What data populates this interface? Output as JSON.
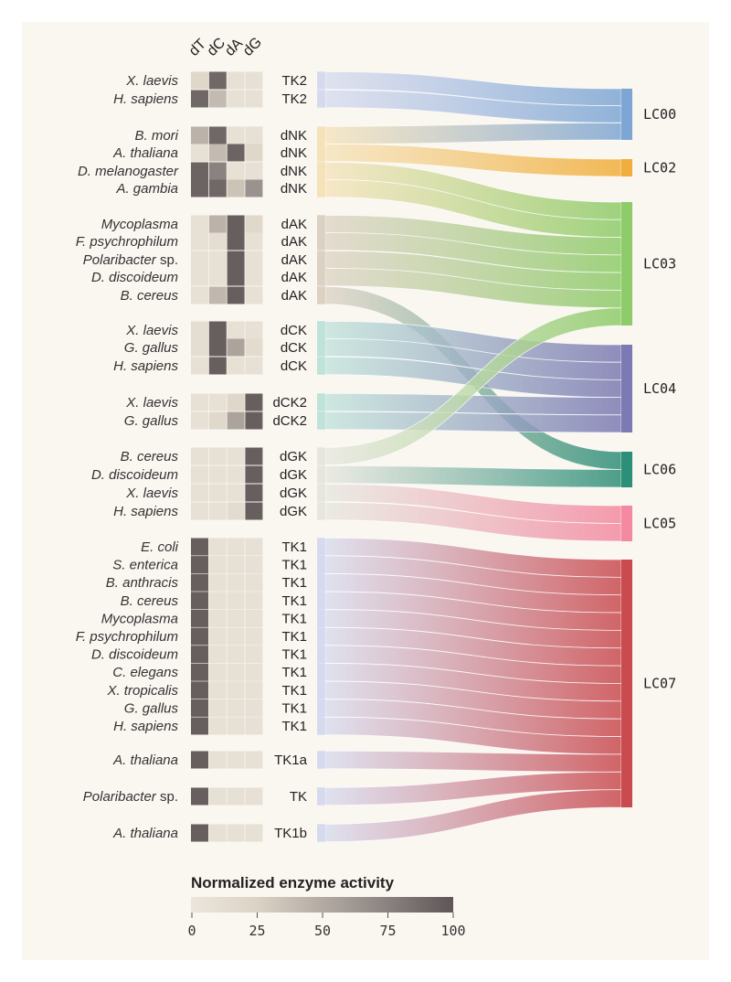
{
  "columns": [
    "dT",
    "dC",
    "dA",
    "dG"
  ],
  "clusters": [
    {
      "id": "LC00",
      "color": "#7ea6d4"
    },
    {
      "id": "LC02",
      "color": "#f0ae3c"
    },
    {
      "id": "LC03",
      "color": "#8ecb69"
    },
    {
      "id": "LC04",
      "color": "#7c7ab2"
    },
    {
      "id": "LC06",
      "color": "#2e8f78"
    },
    {
      "id": "LC05",
      "color": "#f38aa1"
    },
    {
      "id": "LC07",
      "color": "#c94b4f"
    }
  ],
  "gene_colors": {
    "TK2": "#d6daee",
    "dNK": "#f5e2b8",
    "dAK": "#dcd2c4",
    "dCK": "#bfe2da",
    "dCK2": "#bfe2da",
    "dGK": "#e6e6df",
    "TK1": "#d6daee",
    "TK1a": "#d6daee",
    "TK": "#d6daee",
    "TK1b": "#d6daee"
  },
  "rows": [
    {
      "organism": "X. laevis",
      "suffix": "",
      "gene": "TK2",
      "activity": [
        20,
        90,
        8,
        8
      ],
      "cluster": "LC00"
    },
    {
      "organism": "H. sapiens",
      "suffix": "",
      "gene": "TK2",
      "activity": [
        90,
        40,
        8,
        8
      ],
      "cluster": "LC00"
    },
    {
      "organism": "B. mori",
      "suffix": "",
      "gene": "dNK",
      "activity": [
        45,
        90,
        8,
        8
      ],
      "cluster": "LC00"
    },
    {
      "organism": "A. thaliana",
      "suffix": "",
      "gene": "dNK",
      "activity": [
        8,
        40,
        92,
        20
      ],
      "cluster": "LC02"
    },
    {
      "organism": "D. melanogaster",
      "suffix": "",
      "gene": "dNK",
      "activity": [
        92,
        75,
        8,
        8
      ],
      "cluster": "LC03"
    },
    {
      "organism": "A. gambia",
      "suffix": "",
      "gene": "dNK",
      "activity": [
        92,
        90,
        35,
        65
      ],
      "cluster": "LC03"
    },
    {
      "organism": "Mycoplasma",
      "suffix": "",
      "gene": "dAK",
      "activity": [
        8,
        45,
        95,
        18
      ],
      "cluster": "LC03"
    },
    {
      "organism": "F. psychrophilum",
      "suffix": "",
      "gene": "dAK",
      "activity": [
        8,
        12,
        95,
        8
      ],
      "cluster": "LC03"
    },
    {
      "organism": "Polaribacter",
      "suffix": " sp.",
      "gene": "dAK",
      "activity": [
        8,
        8,
        95,
        8
      ],
      "cluster": "LC03"
    },
    {
      "organism": "D. discoideum",
      "suffix": "",
      "gene": "dAK",
      "activity": [
        8,
        8,
        95,
        8
      ],
      "cluster": "LC03"
    },
    {
      "organism": "B. cereus",
      "suffix": "",
      "gene": "dAK",
      "activity": [
        8,
        42,
        95,
        8
      ],
      "cluster": "LC06"
    },
    {
      "organism": "X. laevis",
      "suffix": "",
      "gene": "dCK",
      "activity": [
        12,
        95,
        8,
        8
      ],
      "cluster": "LC04"
    },
    {
      "organism": "G. gallus",
      "suffix": "",
      "gene": "dCK",
      "activity": [
        12,
        95,
        55,
        15
      ],
      "cluster": "LC04"
    },
    {
      "organism": "H. sapiens",
      "suffix": "",
      "gene": "dCK",
      "activity": [
        8,
        95,
        8,
        8
      ],
      "cluster": "LC04"
    },
    {
      "organism": "X. laevis",
      "suffix": "",
      "gene": "dCK2",
      "activity": [
        8,
        8,
        20,
        95
      ],
      "cluster": "LC04"
    },
    {
      "organism": "G. gallus",
      "suffix": "",
      "gene": "dCK2",
      "activity": [
        8,
        18,
        55,
        95
      ],
      "cluster": "LC04"
    },
    {
      "organism": "B. cereus",
      "suffix": "",
      "gene": "dGK",
      "activity": [
        8,
        8,
        8,
        95
      ],
      "cluster": "LC03"
    },
    {
      "organism": "D. discoideum",
      "suffix": "",
      "gene": "dGK",
      "activity": [
        8,
        8,
        8,
        95
      ],
      "cluster": "LC06"
    },
    {
      "organism": "X. laevis",
      "suffix": "",
      "gene": "dGK",
      "activity": [
        8,
        8,
        8,
        95
      ],
      "cluster": "LC05"
    },
    {
      "organism": "H. sapiens",
      "suffix": "",
      "gene": "dGK",
      "activity": [
        8,
        8,
        14,
        95
      ],
      "cluster": "LC05"
    },
    {
      "organism": "E. coli",
      "suffix": "",
      "gene": "TK1",
      "activity": [
        95,
        8,
        8,
        8
      ],
      "cluster": "LC07"
    },
    {
      "organism": "S. enterica",
      "suffix": "",
      "gene": "TK1",
      "activity": [
        95,
        8,
        8,
        8
      ],
      "cluster": "LC07"
    },
    {
      "organism": "B. anthracis",
      "suffix": "",
      "gene": "TK1",
      "activity": [
        95,
        8,
        8,
        8
      ],
      "cluster": "LC07"
    },
    {
      "organism": "B. cereus",
      "suffix": "",
      "gene": "TK1",
      "activity": [
        95,
        8,
        8,
        8
      ],
      "cluster": "LC07"
    },
    {
      "organism": "Mycoplasma",
      "suffix": "",
      "gene": "TK1",
      "activity": [
        95,
        8,
        8,
        8
      ],
      "cluster": "LC07"
    },
    {
      "organism": "F. psychrophilum",
      "suffix": "",
      "gene": "TK1",
      "activity": [
        95,
        8,
        8,
        8
      ],
      "cluster": "LC07"
    },
    {
      "organism": "D. discoideum",
      "suffix": "",
      "gene": "TK1",
      "activity": [
        95,
        8,
        8,
        8
      ],
      "cluster": "LC07"
    },
    {
      "organism": "C. elegans",
      "suffix": "",
      "gene": "TK1",
      "activity": [
        95,
        8,
        8,
        8
      ],
      "cluster": "LC07"
    },
    {
      "organism": "X. tropicalis",
      "suffix": "",
      "gene": "TK1",
      "activity": [
        95,
        8,
        8,
        8
      ],
      "cluster": "LC07"
    },
    {
      "organism": "G. gallus",
      "suffix": "",
      "gene": "TK1",
      "activity": [
        95,
        8,
        8,
        8
      ],
      "cluster": "LC07"
    },
    {
      "organism": "H. sapiens",
      "suffix": "",
      "gene": "TK1",
      "activity": [
        95,
        8,
        8,
        8
      ],
      "cluster": "LC07"
    },
    {
      "organism": "A. thaliana",
      "suffix": "",
      "gene": "TK1a",
      "activity": [
        95,
        8,
        8,
        8
      ],
      "cluster": "LC07"
    },
    {
      "organism": "Polaribacter",
      "suffix": " sp.",
      "gene": "TK",
      "activity": [
        95,
        8,
        8,
        8
      ],
      "cluster": "LC07"
    },
    {
      "organism": "A. thaliana",
      "suffix": "",
      "gene": "TK1b",
      "activity": [
        95,
        8,
        8,
        8
      ],
      "cluster": "LC07"
    }
  ],
  "legend": {
    "title": "Normalized enzyme activity",
    "ticks": [
      "0",
      "25",
      "50",
      "75",
      "100"
    ],
    "scale_colors": [
      "#ebe6dc",
      "#dcd3c5",
      "#b3aba3",
      "#8a8280",
      "#5e5656"
    ]
  }
}
